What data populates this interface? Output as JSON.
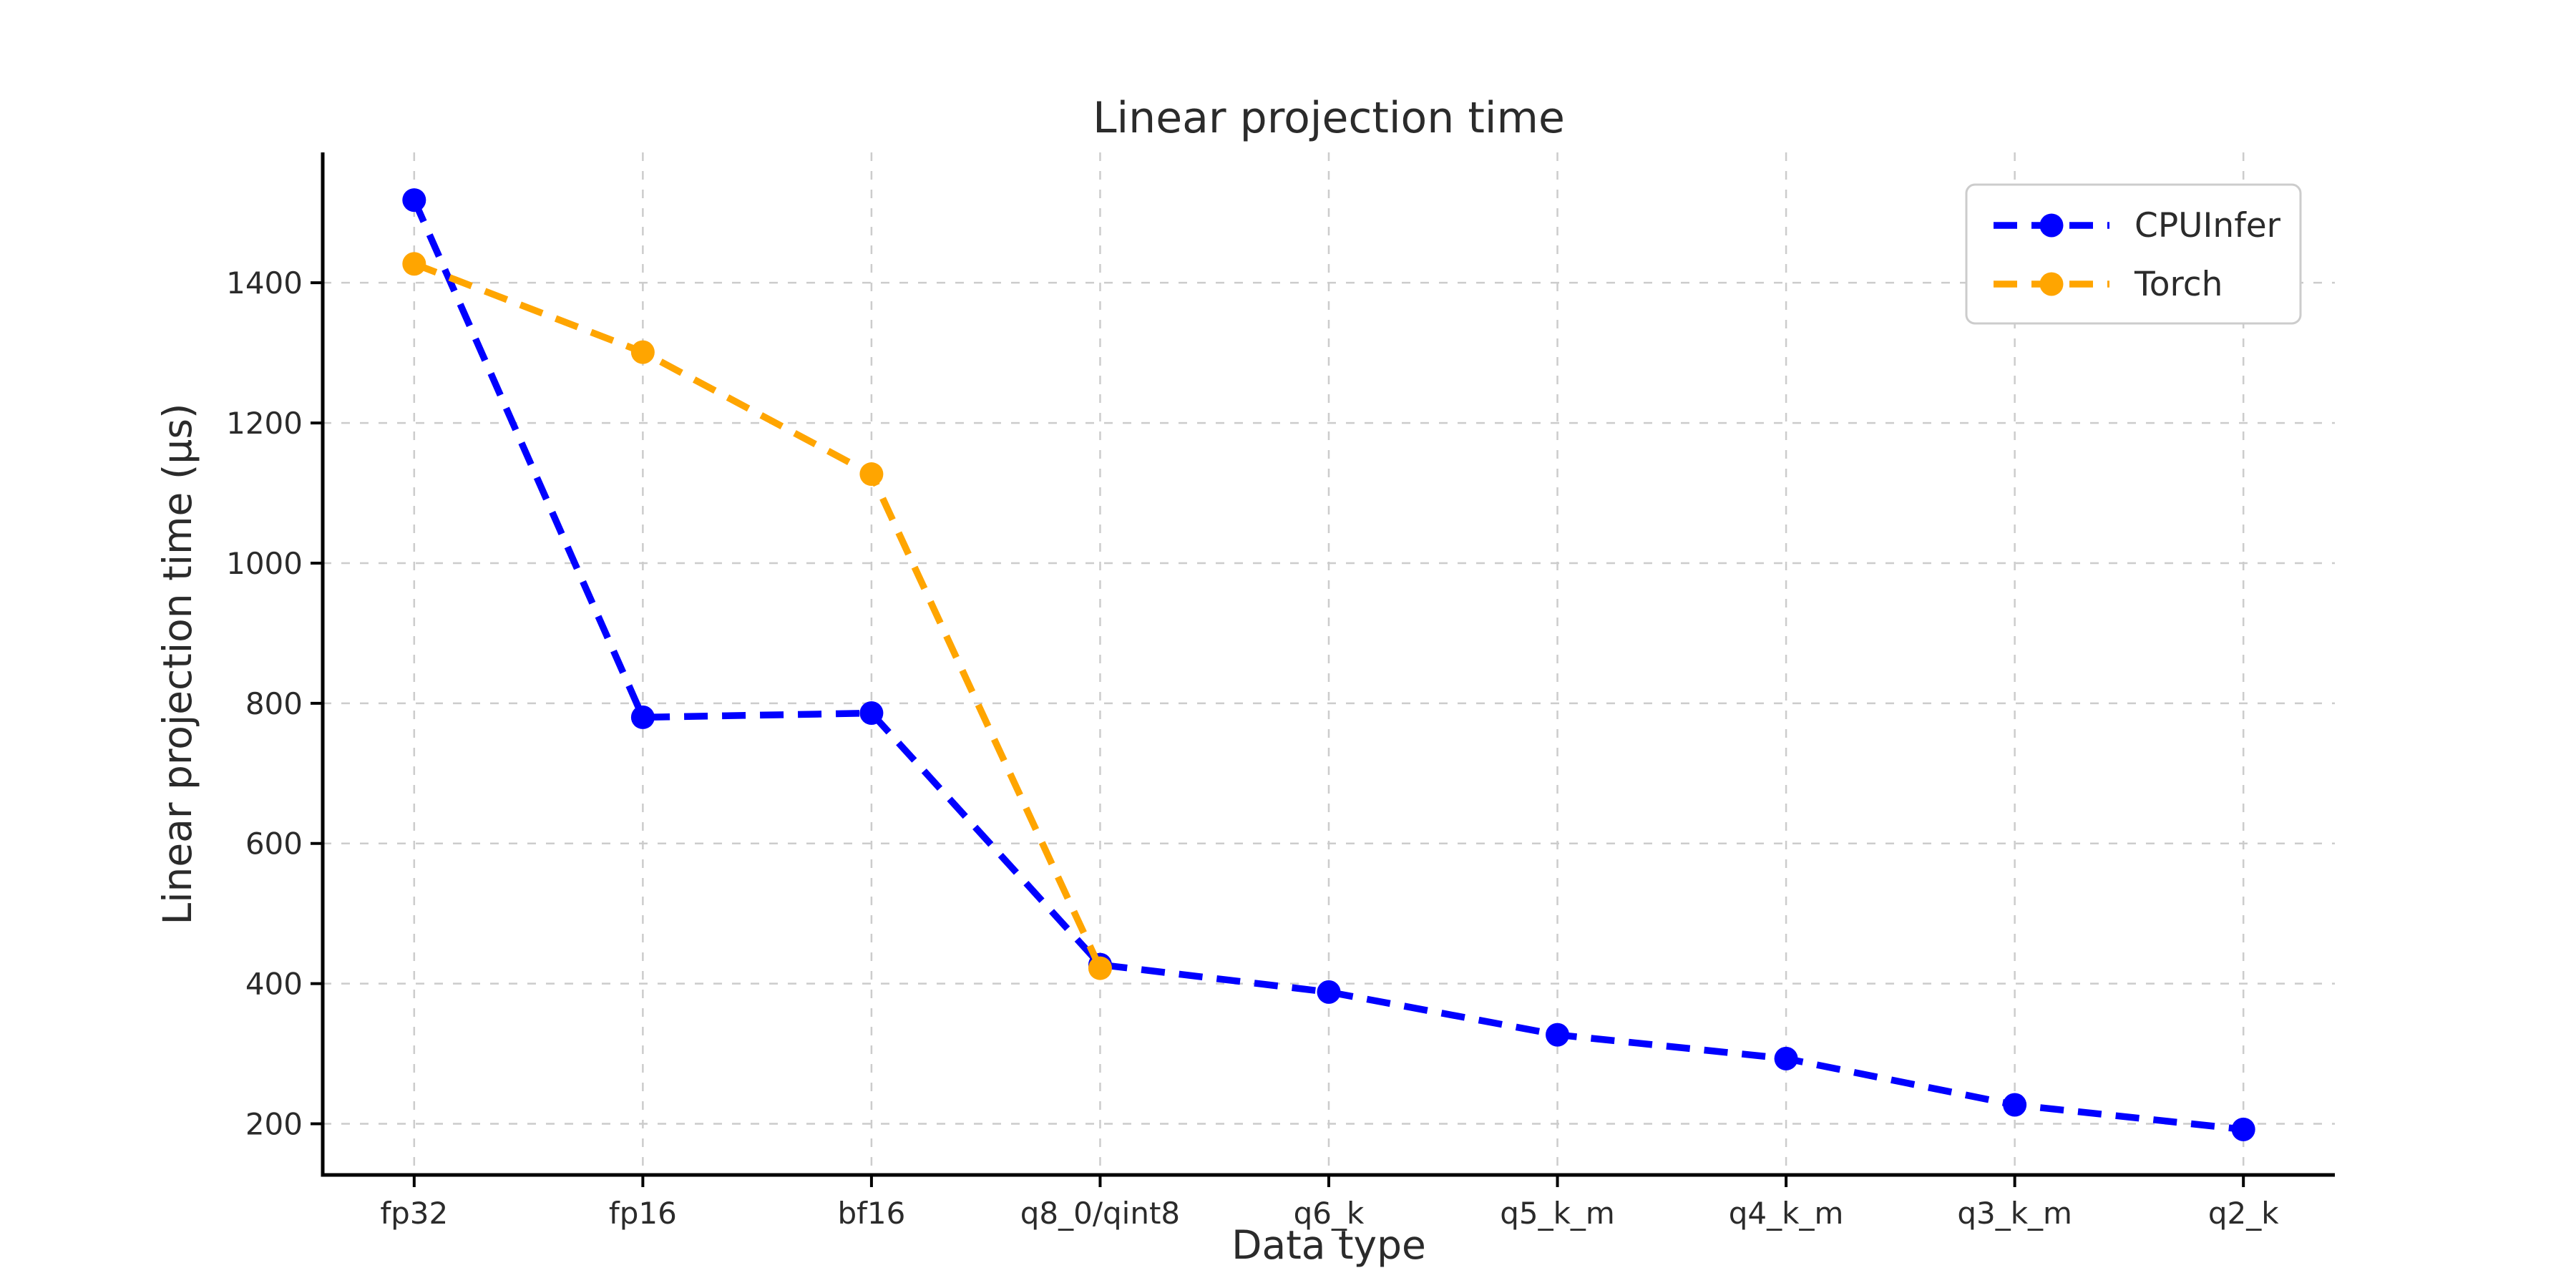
{
  "chart_data": {
    "type": "line",
    "title": "Linear projection time",
    "xlabel": "Data type",
    "ylabel": "Linear projection time (µs)",
    "categories": [
      "fp32",
      "fp16",
      "bf16",
      "q8_0/qint8",
      "q6_k",
      "q5_k_m",
      "q4_k_m",
      "q3_k_m",
      "q2_k"
    ],
    "series": [
      {
        "name": "CPUInfer",
        "color": "#0000ff",
        "values": [
          1518,
          780,
          786,
          427,
          388,
          327,
          293,
          227,
          192
        ]
      },
      {
        "name": "Torch",
        "color": "#ffa500",
        "values": [
          1427,
          1301,
          1127,
          422,
          null,
          null,
          null,
          null,
          null
        ]
      }
    ],
    "yticks": [
      200,
      400,
      600,
      800,
      1000,
      1200,
      1400
    ],
    "ylim": [
      127,
      1586
    ],
    "grid": true,
    "grid_style": "dashed",
    "line_style": "dashed",
    "marker": "circle",
    "legend_position": "upper right",
    "legend_entries": [
      "CPUInfer",
      "Torch"
    ]
  },
  "colors": {
    "background": "#ffffff",
    "grid": "#cccccc",
    "spine": "#000000",
    "text": "#2b2b2b",
    "legend_border": "#cccccc",
    "cpuinfer": "#0000ff",
    "torch": "#ffa500"
  }
}
